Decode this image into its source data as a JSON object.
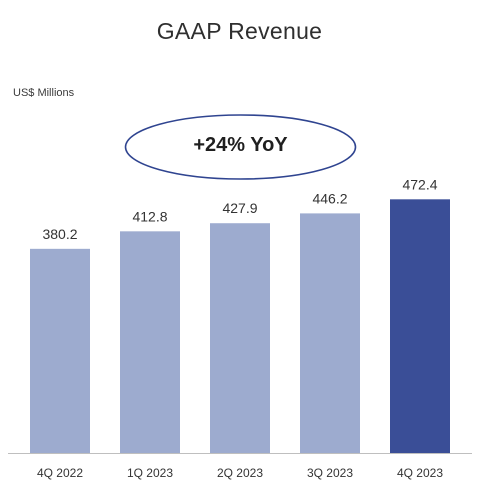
{
  "colors": {
    "bar": "#9dabcf",
    "bar_highlight": "#3a4e97",
    "axis": "#bfbfbf",
    "badge_border": "#2f4490"
  },
  "chart_data": {
    "type": "bar",
    "title": "GAAP Revenue",
    "unit_label": "US$ Millions",
    "annotation": "+24% YoY",
    "categories": [
      "4Q 2022",
      "1Q 2023",
      "2Q 2023",
      "3Q 2023",
      "4Q 2023"
    ],
    "values": [
      380.2,
      412.8,
      427.9,
      446.2,
      472.4
    ],
    "value_labels": [
      "380.2",
      "412.8",
      "427.9",
      "446.2",
      "472.4"
    ],
    "highlight_index": 4,
    "ylim": [
      0,
      500
    ],
    "grid": false,
    "legend": "none"
  }
}
